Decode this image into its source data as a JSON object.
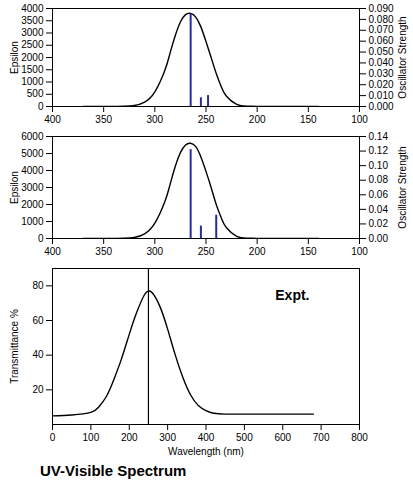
{
  "chart_data": [
    {
      "type": "line",
      "ylabel": "Epsilon",
      "y2label": "Oscillator Strength",
      "xlim": [
        400,
        100
      ],
      "xticks": [
        400,
        350,
        300,
        250,
        200,
        150,
        100
      ],
      "ylim": [
        0,
        4000
      ],
      "yticks": [
        0,
        500,
        1000,
        1500,
        2000,
        2500,
        3000,
        3500,
        4000
      ],
      "y2lim": [
        0,
        0.09
      ],
      "y2ticks": [
        {
          "value": 0,
          "label": "0.000"
        },
        {
          "value": 0.01,
          "label": "0.010"
        },
        {
          "value": 0.02,
          "label": "0.020"
        },
        {
          "value": 0.03,
          "label": "0.030"
        },
        {
          "value": 0.04,
          "label": "0.040"
        },
        {
          "value": 0.05,
          "label": "0.050"
        },
        {
          "value": 0.06,
          "label": "0.060"
        },
        {
          "value": 0.07,
          "label": "0.070"
        },
        {
          "value": 0.08,
          "label": "0.080"
        },
        {
          "value": 0.09,
          "label": "0.090"
        }
      ],
      "series": [
        {
          "type": "line",
          "color": "#000000",
          "x": [
            370,
            360,
            350,
            340,
            330,
            320,
            310,
            300,
            290,
            285,
            280,
            275,
            270,
            265,
            260,
            255,
            250,
            245,
            240,
            235,
            230,
            220,
            210,
            200,
            190,
            180,
            160,
            140
          ],
          "values": [
            0,
            0,
            0,
            2,
            10,
            40,
            180,
            600,
            1500,
            2200,
            2900,
            3450,
            3750,
            3800,
            3650,
            3250,
            2650,
            2000,
            1350,
            800,
            420,
            90,
            15,
            2,
            0,
            0,
            0,
            0
          ]
        },
        {
          "type": "stick",
          "axis": "y2",
          "color": "#2a2a9a",
          "x": [
            265,
            255,
            248
          ],
          "values": [
            0.085,
            0.008,
            0.01
          ]
        }
      ]
    },
    {
      "type": "line",
      "ylabel": "Epsilon",
      "y2label": "Oscillator Strength",
      "xlim": [
        400,
        100
      ],
      "xticks": [
        400,
        350,
        300,
        250,
        200,
        150,
        100
      ],
      "ylim": [
        0,
        6000
      ],
      "yticks": [
        0,
        1000,
        2000,
        3000,
        4000,
        5000,
        6000
      ],
      "y2lim": [
        0,
        0.14
      ],
      "y2ticks": [
        {
          "value": 0,
          "label": "0.00"
        },
        {
          "value": 0.02,
          "label": "0.02"
        },
        {
          "value": 0.04,
          "label": "0.04"
        },
        {
          "value": 0.06,
          "label": "0.06"
        },
        {
          "value": 0.08,
          "label": "0.08"
        },
        {
          "value": 0.1,
          "label": "0.10"
        },
        {
          "value": 0.12,
          "label": "0.12"
        },
        {
          "value": 0.14,
          "label": "0.14"
        }
      ],
      "series": [
        {
          "type": "line",
          "color": "#000000",
          "x": [
            370,
            360,
            350,
            340,
            330,
            320,
            310,
            300,
            290,
            285,
            280,
            275,
            270,
            265,
            260,
            255,
            250,
            245,
            240,
            235,
            230,
            220,
            210,
            200,
            190,
            180,
            160,
            140
          ],
          "values": [
            0,
            0,
            0,
            3,
            15,
            60,
            270,
            900,
            2200,
            3200,
            4250,
            5050,
            5500,
            5600,
            5400,
            4800,
            3950,
            3000,
            2000,
            1200,
            630,
            130,
            20,
            3,
            0,
            0,
            0,
            0
          ]
        },
        {
          "type": "stick",
          "axis": "y2",
          "color": "#2a2a9a",
          "x": [
            265,
            255,
            240
          ],
          "values": [
            0.122,
            0.017,
            0.032
          ]
        }
      ]
    },
    {
      "type": "line",
      "ylabel": "Transmittance %",
      "xlabel": "Wavelength (nm)",
      "annotation": "Expt.",
      "xlim": [
        0,
        800
      ],
      "xticks": [
        0,
        100,
        200,
        300,
        400,
        500,
        600,
        700,
        800
      ],
      "ylim": [
        0,
        90
      ],
      "yticks": [
        20,
        40,
        60,
        80
      ],
      "vline": 250,
      "series": [
        {
          "type": "line",
          "color": "#000000",
          "x": [
            0,
            50,
            100,
            120,
            140,
            160,
            180,
            200,
            220,
            240,
            250,
            260,
            280,
            300,
            320,
            340,
            360,
            380,
            400,
            420,
            450,
            500,
            600,
            680
          ],
          "values": [
            5,
            5.5,
            7,
            10,
            16,
            26,
            38,
            52,
            65,
            75,
            77,
            76,
            68,
            55,
            40,
            27,
            17,
            11,
            8,
            6.5,
            6,
            6,
            6,
            6
          ]
        }
      ]
    }
  ],
  "caption": "UV-Visible Spectrum"
}
